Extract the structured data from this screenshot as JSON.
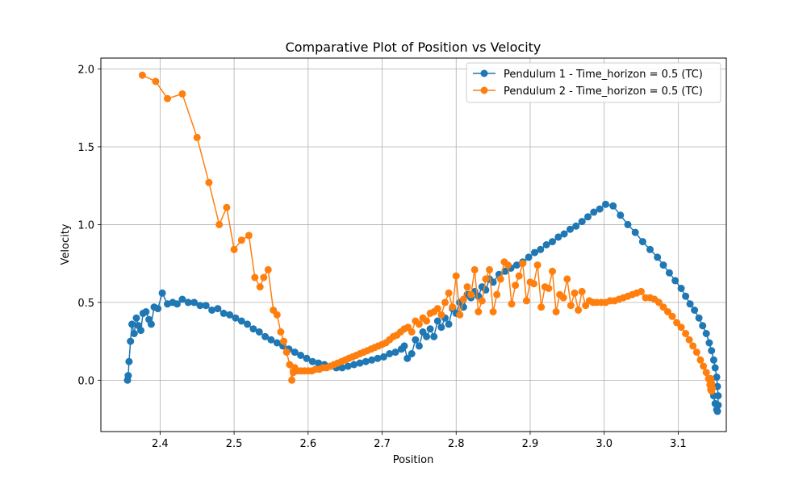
{
  "chart_data": {
    "type": "line",
    "title": "Comparative Plot of Position vs Velocity",
    "xlabel": "Position",
    "ylabel": "Velocity",
    "xlim": [
      2.32,
      3.165
    ],
    "ylim": [
      -0.33,
      2.07
    ],
    "x_ticks": [
      2.4,
      2.5,
      2.6,
      2.7,
      2.8,
      2.9,
      3.0,
      3.1
    ],
    "x_tick_labels": [
      "2.4",
      "2.5",
      "2.6",
      "2.7",
      "2.8",
      "2.9",
      "3.0",
      "3.1"
    ],
    "y_ticks": [
      0.0,
      0.5,
      1.0,
      1.5,
      2.0
    ],
    "y_tick_labels": [
      "0.0",
      "0.5",
      "1.0",
      "1.5",
      "2.0"
    ],
    "grid": true,
    "legend_position": "top-right",
    "series": [
      {
        "name": "Pendulum 1 - Time_horizon = 0.5 (TC)",
        "color": "#1f77b4",
        "x": [
          2.356,
          2.357,
          2.358,
          2.36,
          2.362,
          2.365,
          2.368,
          2.371,
          2.374,
          2.377,
          2.381,
          2.385,
          2.388,
          2.392,
          2.397,
          2.403,
          2.41,
          2.417,
          2.423,
          2.43,
          2.438,
          2.446,
          2.454,
          2.462,
          2.47,
          2.478,
          2.486,
          2.494,
          2.502,
          2.51,
          2.518,
          2.526,
          2.534,
          2.542,
          2.55,
          2.558,
          2.566,
          2.574,
          2.582,
          2.59,
          2.598,
          2.606,
          2.614,
          2.622,
          2.63,
          2.638,
          2.646,
          2.654,
          2.662,
          2.67,
          2.678,
          2.686,
          2.694,
          2.702,
          2.71,
          2.718,
          2.726,
          2.73,
          2.734,
          2.74,
          2.745,
          2.75,
          2.755,
          2.76,
          2.765,
          2.77,
          2.775,
          2.78,
          2.785,
          2.79,
          2.795,
          2.8,
          2.805,
          2.81,
          2.815,
          2.82,
          2.825,
          2.83,
          2.835,
          2.84,
          2.845,
          2.85,
          2.858,
          2.866,
          2.874,
          2.882,
          2.89,
          2.898,
          2.906,
          2.914,
          2.922,
          2.93,
          2.938,
          2.946,
          2.954,
          2.962,
          2.97,
          2.978,
          2.986,
          2.994,
          3.002,
          3.012,
          3.022,
          3.032,
          3.042,
          3.052,
          3.062,
          3.072,
          3.08,
          3.088,
          3.096,
          3.104,
          3.11,
          3.116,
          3.122,
          3.128,
          3.133,
          3.138,
          3.142,
          3.145,
          3.148,
          3.15,
          3.152,
          3.153,
          3.154,
          3.154,
          3.153,
          3.152,
          3.15,
          3.148,
          3.146,
          3.144
        ],
        "y": [
          0.0,
          0.03,
          0.12,
          0.25,
          0.36,
          0.3,
          0.4,
          0.35,
          0.32,
          0.43,
          0.44,
          0.39,
          0.36,
          0.47,
          0.46,
          0.56,
          0.49,
          0.5,
          0.49,
          0.52,
          0.5,
          0.5,
          0.48,
          0.48,
          0.45,
          0.46,
          0.43,
          0.42,
          0.4,
          0.38,
          0.36,
          0.33,
          0.31,
          0.28,
          0.26,
          0.24,
          0.22,
          0.2,
          0.18,
          0.16,
          0.14,
          0.12,
          0.11,
          0.1,
          0.09,
          0.08,
          0.08,
          0.09,
          0.1,
          0.11,
          0.12,
          0.13,
          0.14,
          0.15,
          0.17,
          0.18,
          0.2,
          0.22,
          0.14,
          0.17,
          0.26,
          0.22,
          0.31,
          0.28,
          0.33,
          0.28,
          0.38,
          0.34,
          0.4,
          0.36,
          0.46,
          0.43,
          0.5,
          0.47,
          0.55,
          0.53,
          0.57,
          0.54,
          0.6,
          0.58,
          0.65,
          0.63,
          0.68,
          0.7,
          0.72,
          0.74,
          0.76,
          0.79,
          0.82,
          0.84,
          0.87,
          0.89,
          0.92,
          0.94,
          0.97,
          0.99,
          1.02,
          1.05,
          1.08,
          1.1,
          1.13,
          1.12,
          1.06,
          1.0,
          0.95,
          0.89,
          0.84,
          0.79,
          0.74,
          0.69,
          0.64,
          0.59,
          0.54,
          0.49,
          0.45,
          0.4,
          0.35,
          0.3,
          0.24,
          0.19,
          0.13,
          0.08,
          0.02,
          -0.04,
          -0.1,
          -0.16,
          -0.2,
          -0.19,
          -0.15,
          -0.1,
          -0.05,
          0.0
        ]
      },
      {
        "name": "Pendulum 2 - Time_horizon = 0.5 (TC)",
        "color": "#ff7f0e",
        "x": [
          2.376,
          2.394,
          2.41,
          2.43,
          2.45,
          2.466,
          2.48,
          2.49,
          2.5,
          2.51,
          2.52,
          2.528,
          2.535,
          2.54,
          2.546,
          2.553,
          2.558,
          2.563,
          2.567,
          2.571,
          2.575,
          2.578,
          2.58,
          2.582,
          2.585,
          2.59,
          2.595,
          2.6,
          2.605,
          2.61,
          2.615,
          2.62,
          2.625,
          2.63,
          2.635,
          2.64,
          2.645,
          2.65,
          2.655,
          2.66,
          2.665,
          2.67,
          2.675,
          2.68,
          2.685,
          2.69,
          2.695,
          2.7,
          2.705,
          2.71,
          2.715,
          2.72,
          2.725,
          2.73,
          2.735,
          2.74,
          2.745,
          2.75,
          2.755,
          2.76,
          2.765,
          2.77,
          2.775,
          2.78,
          2.785,
          2.79,
          2.795,
          2.8,
          2.805,
          2.81,
          2.815,
          2.82,
          2.825,
          2.83,
          2.835,
          2.84,
          2.845,
          2.85,
          2.855,
          2.86,
          2.865,
          2.87,
          2.875,
          2.88,
          2.885,
          2.89,
          2.895,
          2.9,
          2.905,
          2.91,
          2.915,
          2.92,
          2.925,
          2.93,
          2.935,
          2.94,
          2.945,
          2.95,
          2.955,
          2.96,
          2.965,
          2.97,
          2.975,
          2.98,
          2.985,
          2.99,
          2.996,
          3.002,
          3.008,
          3.014,
          3.02,
          3.026,
          3.032,
          3.038,
          3.044,
          3.05,
          3.056,
          3.062,
          3.068,
          3.074,
          3.08,
          3.086,
          3.092,
          3.098,
          3.104,
          3.11,
          3.115,
          3.12,
          3.125,
          3.13,
          3.134,
          3.138,
          3.141,
          3.143,
          3.144,
          3.145,
          3.146,
          3.145,
          3.144,
          3.143
        ],
        "y": [
          1.96,
          1.92,
          1.81,
          1.84,
          1.56,
          1.27,
          1.0,
          1.11,
          0.84,
          0.9,
          0.93,
          0.66,
          0.6,
          0.66,
          0.71,
          0.45,
          0.42,
          0.31,
          0.25,
          0.18,
          0.1,
          0.0,
          0.05,
          0.08,
          0.06,
          0.06,
          0.06,
          0.06,
          0.06,
          0.07,
          0.07,
          0.08,
          0.08,
          0.09,
          0.1,
          0.11,
          0.12,
          0.13,
          0.14,
          0.15,
          0.16,
          0.17,
          0.18,
          0.19,
          0.2,
          0.21,
          0.22,
          0.23,
          0.24,
          0.26,
          0.28,
          0.29,
          0.31,
          0.33,
          0.34,
          0.31,
          0.38,
          0.36,
          0.4,
          0.38,
          0.43,
          0.44,
          0.46,
          0.42,
          0.5,
          0.56,
          0.47,
          0.67,
          0.42,
          0.52,
          0.6,
          0.55,
          0.71,
          0.44,
          0.51,
          0.65,
          0.71,
          0.44,
          0.55,
          0.65,
          0.76,
          0.74,
          0.49,
          0.61,
          0.67,
          0.75,
          0.51,
          0.63,
          0.62,
          0.74,
          0.47,
          0.6,
          0.59,
          0.7,
          0.44,
          0.55,
          0.53,
          0.65,
          0.48,
          0.56,
          0.45,
          0.57,
          0.48,
          0.51,
          0.5,
          0.5,
          0.5,
          0.5,
          0.51,
          0.51,
          0.52,
          0.53,
          0.54,
          0.55,
          0.56,
          0.57,
          0.53,
          0.53,
          0.52,
          0.5,
          0.47,
          0.44,
          0.41,
          0.37,
          0.34,
          0.3,
          0.26,
          0.22,
          0.18,
          0.13,
          0.09,
          0.05,
          0.01,
          -0.03,
          -0.06,
          -0.07,
          -0.05,
          -0.02,
          0.01,
          0.0
        ]
      }
    ]
  }
}
